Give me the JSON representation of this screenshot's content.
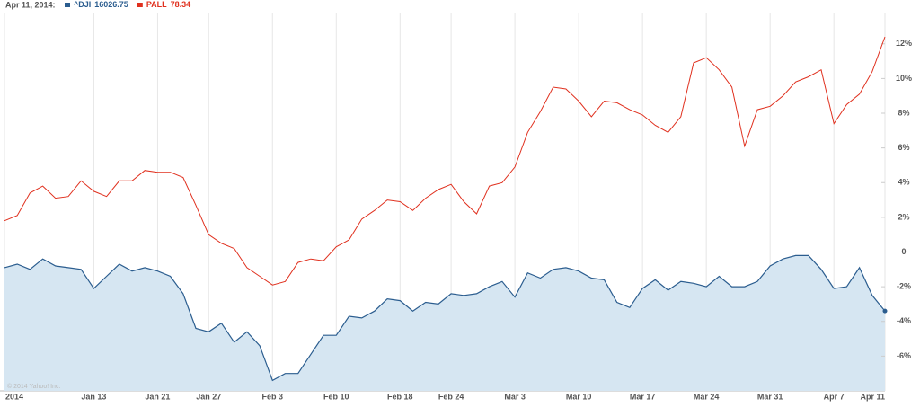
{
  "chart_data": {
    "type": "line",
    "date_label": "Apr 11, 2014:",
    "watermark": "© 2014 Yahoo! Inc.",
    "categories": [
      "2014",
      null,
      null,
      null,
      null,
      null,
      null,
      "Jan 13",
      null,
      null,
      null,
      null,
      "Jan 21",
      null,
      null,
      null,
      "Jan 27",
      null,
      null,
      null,
      null,
      "Feb 3",
      null,
      null,
      null,
      null,
      "Feb 10",
      null,
      null,
      null,
      null,
      "Feb 18",
      null,
      null,
      null,
      "Feb 24",
      null,
      null,
      null,
      null,
      "Mar 3",
      null,
      null,
      null,
      null,
      "Mar 10",
      null,
      null,
      null,
      null,
      "Mar 17",
      null,
      null,
      null,
      null,
      "Mar 24",
      null,
      null,
      null,
      null,
      "Mar 31",
      null,
      null,
      null,
      null,
      "Apr 7",
      null,
      null,
      null,
      "Apr 11"
    ],
    "series": [
      {
        "name": "^DJI",
        "quote": 16026.75,
        "color": "#2b5d8f",
        "fill": "#d6e6f2",
        "values": [
          -0.9,
          -0.7,
          -1.0,
          -0.4,
          -0.8,
          -0.9,
          -1.0,
          -2.1,
          -1.4,
          -0.7,
          -1.1,
          -0.9,
          -1.1,
          -1.4,
          -2.4,
          -4.4,
          -4.6,
          -4.1,
          -5.2,
          -4.6,
          -5.4,
          -7.4,
          -7.0,
          -7.0,
          -5.9,
          -4.8,
          -4.8,
          -3.7,
          -3.8,
          -3.4,
          -2.7,
          -2.8,
          -3.4,
          -2.9,
          -3.0,
          -2.4,
          -2.5,
          -2.4,
          -2.0,
          -1.7,
          -2.6,
          -1.2,
          -1.5,
          -1.0,
          -0.9,
          -1.1,
          -1.5,
          -1.6,
          -2.9,
          -3.2,
          -2.1,
          -1.6,
          -2.2,
          -1.7,
          -1.8,
          -2.0,
          -1.4,
          -2.0,
          -2.0,
          -1.7,
          -0.8,
          -0.4,
          -0.2,
          -0.2,
          -1.0,
          -2.1,
          -2.0,
          -0.9,
          -2.5,
          -3.4
        ]
      },
      {
        "name": "PALL",
        "quote": 78.34,
        "color": "#e0301e",
        "values": [
          1.8,
          2.1,
          3.4,
          3.8,
          3.1,
          3.2,
          4.1,
          3.5,
          3.2,
          4.1,
          4.1,
          4.7,
          4.6,
          4.6,
          4.3,
          2.7,
          1.0,
          0.5,
          0.2,
          -0.9,
          -1.4,
          -1.9,
          -1.7,
          -0.6,
          -0.4,
          -0.5,
          0.3,
          0.7,
          1.9,
          2.4,
          3.0,
          2.9,
          2.4,
          3.1,
          3.6,
          3.9,
          2.9,
          2.2,
          3.8,
          4.0,
          4.9,
          6.9,
          8.1,
          9.5,
          9.4,
          8.7,
          7.8,
          8.7,
          8.6,
          8.2,
          7.9,
          7.3,
          6.9,
          7.8,
          10.9,
          11.2,
          10.5,
          9.5,
          6.1,
          8.2,
          8.4,
          9.0,
          9.8,
          10.1,
          10.5,
          7.4,
          8.5,
          9.1,
          10.4,
          12.4
        ]
      }
    ],
    "ylim": [
      -8,
      13.8
    ],
    "yticks": [
      {
        "value": 12,
        "label": "12%"
      },
      {
        "value": 10,
        "label": "10%"
      },
      {
        "value": 8,
        "label": "8%"
      },
      {
        "value": 6,
        "label": "6%"
      },
      {
        "value": 4,
        "label": "4%"
      },
      {
        "value": 2,
        "label": "2%"
      },
      0,
      {
        "value": -2,
        "label": "-2%"
      },
      {
        "value": -4,
        "label": "-4%"
      },
      {
        "value": -6,
        "label": "-6%"
      }
    ],
    "grid": true,
    "zero_line": true
  }
}
